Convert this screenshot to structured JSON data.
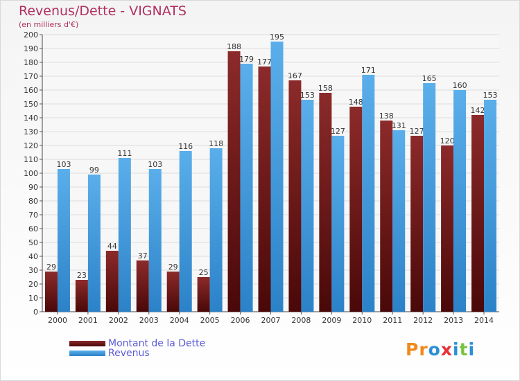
{
  "header": {
    "title": "Revenus/Dette - VIGNATS",
    "subtitle": "(en milliers d'€)"
  },
  "legend": {
    "items": [
      {
        "label": "Montant de la Dette",
        "color": "#7a1d1d"
      },
      {
        "label": "Revenus",
        "color": "#3a9ee0"
      }
    ]
  },
  "logo": {
    "letters": [
      {
        "ch": "P",
        "color": "#f08a1c"
      },
      {
        "ch": "r",
        "color": "#f08a1c"
      },
      {
        "ch": "o",
        "color": "#2a8fd6"
      },
      {
        "ch": "x",
        "color": "#e8303a"
      },
      {
        "ch": "i",
        "color": "#2a8fd6"
      },
      {
        "ch": "t",
        "color": "#7cc242"
      },
      {
        "ch": "i",
        "color": "#2a8fd6"
      }
    ]
  },
  "chart_data": {
    "type": "bar",
    "title": "Revenus/Dette - VIGNATS",
    "subtitle": "(en milliers d'€)",
    "categories": [
      "2000",
      "2001",
      "2002",
      "2003",
      "2004",
      "2005",
      "2006",
      "2007",
      "2008",
      "2009",
      "2010",
      "2011",
      "2012",
      "2013",
      "2014"
    ],
    "series": [
      {
        "name": "Montant de la Dette",
        "color": "#7a1d1d",
        "values": [
          29,
          23,
          44,
          37,
          29,
          25,
          188,
          177,
          167,
          158,
          148,
          138,
          127,
          120,
          142
        ]
      },
      {
        "name": "Revenus",
        "color": "#3a9ee0",
        "values": [
          103,
          99,
          111,
          103,
          116,
          118,
          179,
          195,
          153,
          127,
          171,
          131,
          165,
          160,
          153
        ]
      }
    ],
    "ylim": [
      0,
      200
    ],
    "ytick_step": 10,
    "grid": true,
    "legend_position": "bottom-left"
  }
}
